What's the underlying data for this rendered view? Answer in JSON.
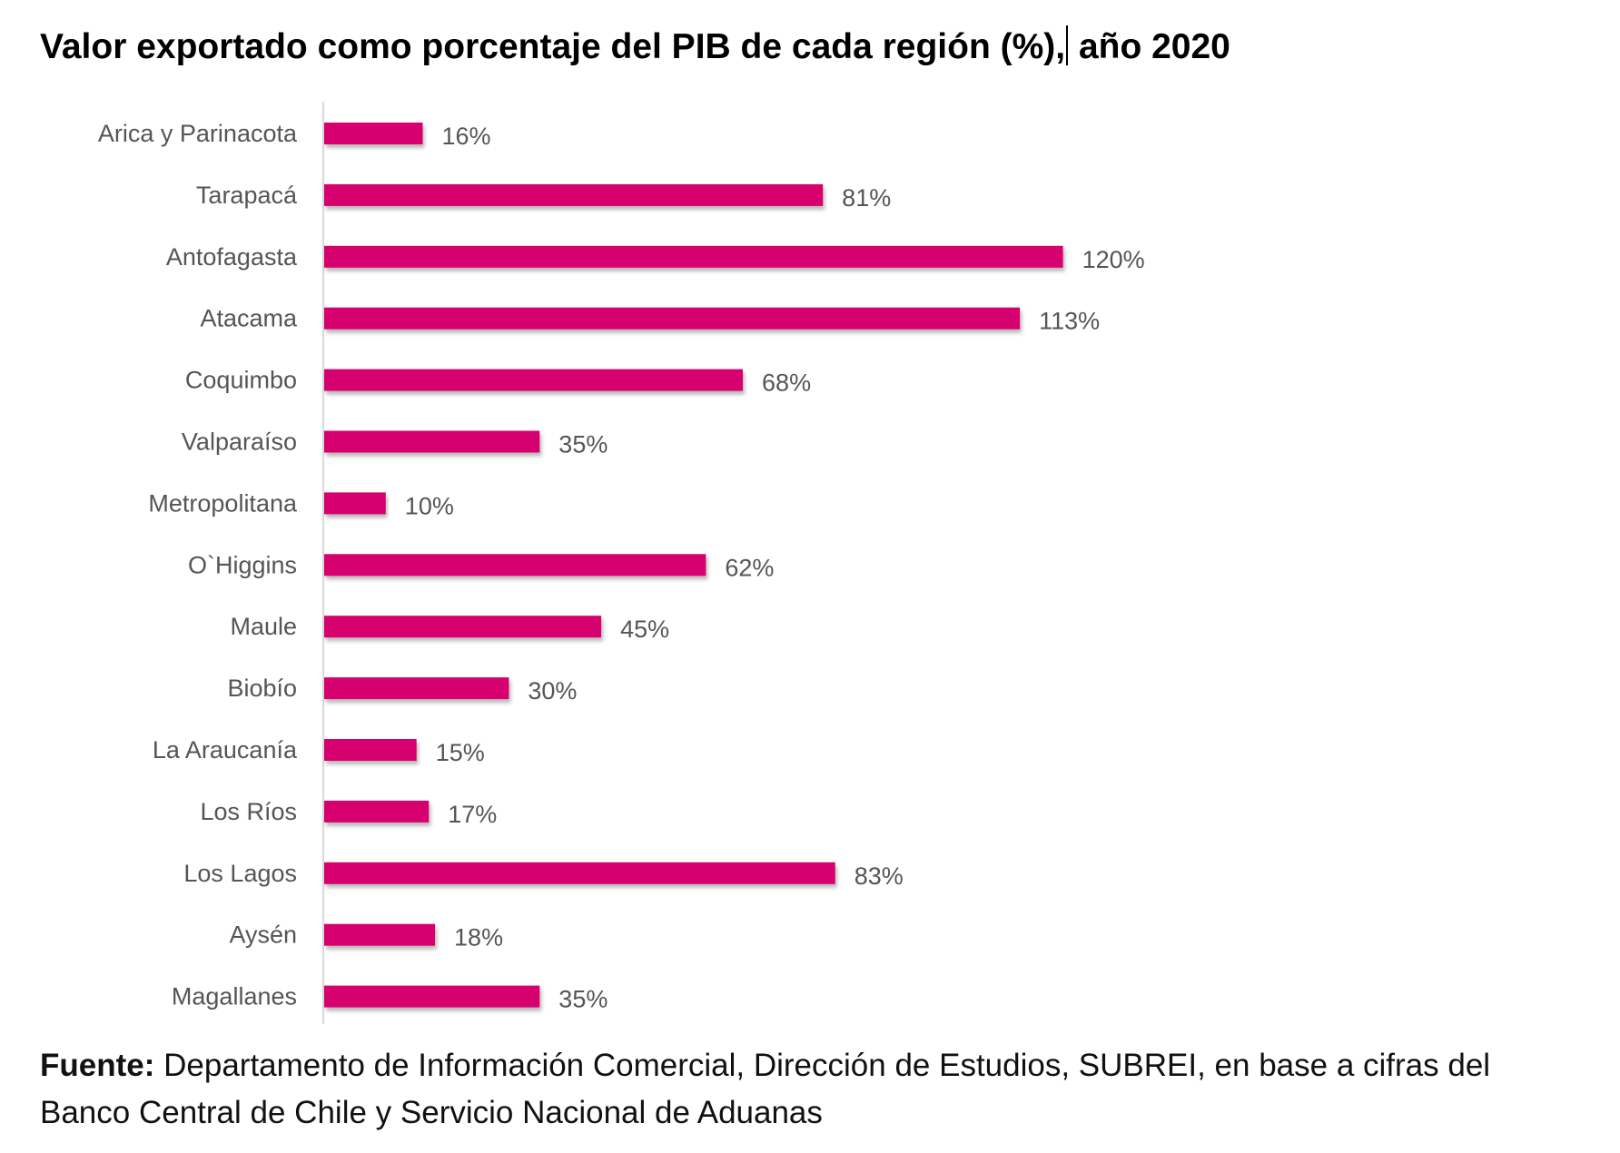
{
  "title": {
    "part1": "Valor exportado como porcentaje del PIB de cada región (%),",
    "part2": " año 2020"
  },
  "source": {
    "label": "Fuente:",
    "text": " Departamento de Información Comercial, Dirección de Estudios, SUBREI, en base a cifras del Banco Central de Chile y Servicio Nacional de Aduanas"
  },
  "colors": {
    "bar": "#d6006e",
    "label": "#555555",
    "axis": "#d9d9d9"
  },
  "chart_data": {
    "type": "bar",
    "orientation": "horizontal",
    "categories": [
      "Arica y Parinacota",
      "Tarapacá",
      "Antofagasta",
      "Atacama",
      "Coquimbo",
      "Valparaíso",
      "Metropolitana",
      "O`Higgins",
      "Maule",
      "Biobío",
      "La Araucanía",
      "Los Ríos",
      "Los Lagos",
      "Aysén",
      "Magallanes"
    ],
    "values": [
      16,
      81,
      120,
      113,
      68,
      35,
      10,
      62,
      45,
      30,
      15,
      17,
      83,
      18,
      35
    ],
    "value_labels": [
      "16%",
      "81%",
      "120%",
      "113%",
      "68%",
      "35%",
      "10%",
      "62%",
      "45%",
      "30%",
      "15%",
      "17%",
      "83%",
      "18%",
      "35%"
    ],
    "xlim": [
      0,
      120
    ],
    "grid": false,
    "legend": "none"
  }
}
